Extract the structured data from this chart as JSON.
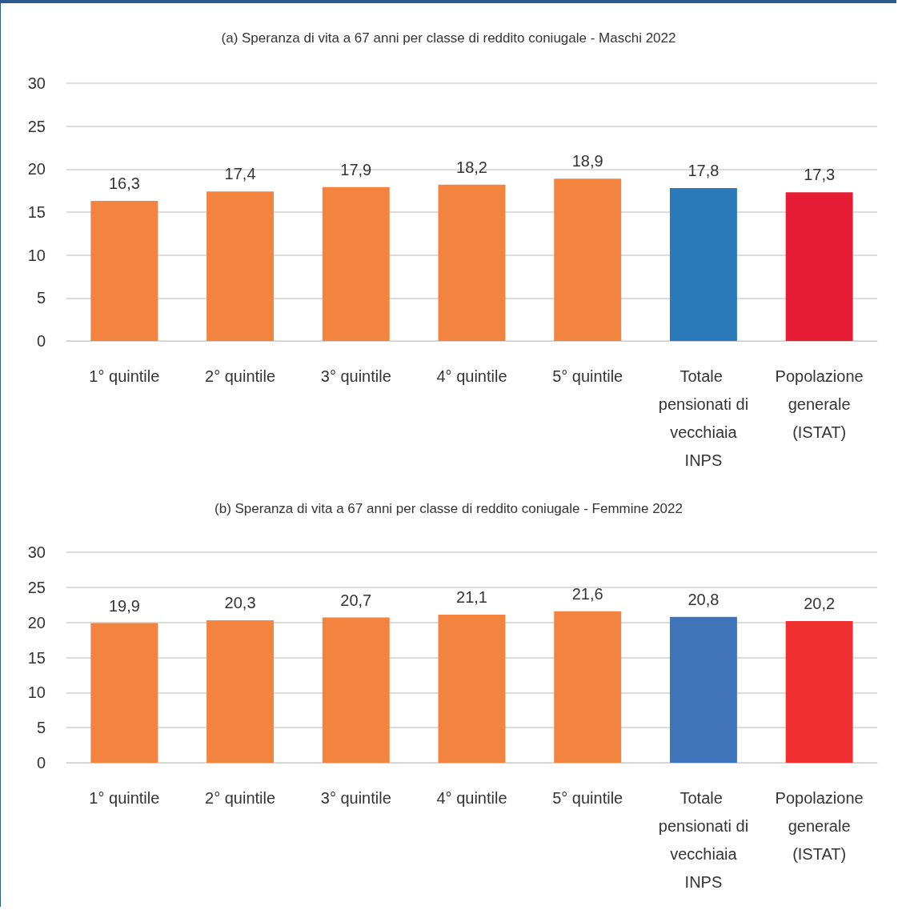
{
  "chart_data": [
    {
      "type": "bar",
      "title": "(a) Speranza di vita a 67 anni per classe di reddito coniugale - Maschi 2022",
      "categories": [
        "1° quintile",
        "2° quintile",
        "3° quintile",
        "4° quintile",
        "5° quintile",
        "Totale pensionati di vecchiaia INPS",
        "Popolazione generale (ISTAT)"
      ],
      "values": [
        16.3,
        17.4,
        17.9,
        18.2,
        18.9,
        17.8,
        17.3
      ],
      "colors": [
        "#f2843f",
        "#f2843f",
        "#f2843f",
        "#f2843f",
        "#f2843f",
        "#2a7aba",
        "#e51c33"
      ],
      "value_labels": [
        "16,3",
        "17,4",
        "17,9",
        "18,2",
        "18,9",
        "17,8",
        "17,3"
      ],
      "ylim": [
        0,
        30
      ],
      "yticks": [
        0,
        5,
        10,
        15,
        20,
        25,
        30
      ],
      "grid": "y"
    },
    {
      "type": "bar",
      "title": "(b) Speranza di vita a 67 anni per classe di reddito coniugale - Femmine 2022",
      "categories": [
        "1° quintile",
        "2° quintile",
        "3° quintile",
        "4° quintile",
        "5° quintile",
        "Totale pensionati di vecchiaia INPS",
        "Popolazione generale (ISTAT)"
      ],
      "values": [
        19.9,
        20.3,
        20.7,
        21.1,
        21.6,
        20.8,
        20.2
      ],
      "colors": [
        "#f2843f",
        "#f2843f",
        "#f2843f",
        "#f2843f",
        "#f2843f",
        "#3f74bb",
        "#ee3030"
      ],
      "value_labels": [
        "19,9",
        "20,3",
        "20,7",
        "21,1",
        "21,6",
        "20,8",
        "20,2"
      ],
      "ylim": [
        0,
        30
      ],
      "yticks": [
        0,
        5,
        10,
        15,
        20,
        25,
        30
      ],
      "grid": "y"
    }
  ]
}
